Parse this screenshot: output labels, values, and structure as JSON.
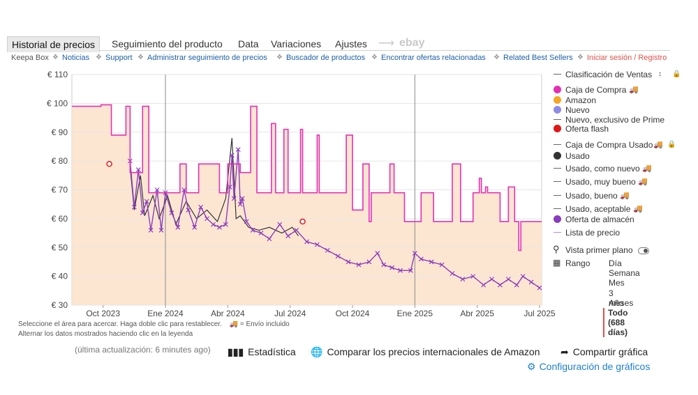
{
  "tabs": [
    "Historial de precios",
    "Seguimiento del producto",
    "Data",
    "Variaciones",
    "Ajustes"
  ],
  "ebay_label": "ebay",
  "links": {
    "keepa_box": "Keepa Box",
    "items": [
      "Noticias",
      "Support",
      "Administrar seguimiento de precios",
      "Buscador de productos",
      "Encontrar ofertas relacionadas",
      "Related Best Sellers"
    ],
    "login": "Iniciar sesión / Registro"
  },
  "chart_data": {
    "type": "line",
    "ylim": [
      30,
      110
    ],
    "yticks": [
      "€ 110",
      "€ 100",
      "€ 90",
      "€ 80",
      "€ 70",
      "€ 60",
      "€ 50",
      "€ 40",
      "€ 30"
    ],
    "ytick_values": [
      110,
      100,
      90,
      80,
      70,
      60,
      50,
      40,
      30
    ],
    "xticks": [
      "Oct 2023",
      "Ene 2024",
      "Abr 2024",
      "Jul 2024",
      "Oct 2024",
      "Ene 2025",
      "Abr 2025",
      "Jul 2025"
    ],
    "x_months": [
      0,
      3,
      6,
      9,
      12,
      15,
      18,
      21
    ],
    "x_range_months": [
      -1.5,
      21.1
    ],
    "series": [
      {
        "name": "Caja de Compra",
        "color": "#e62eb4",
        "points": [
          [
            -1.5,
            99
          ],
          [
            -0.1,
            99
          ],
          [
            -0.1,
            99.5
          ],
          [
            0.4,
            99.5
          ],
          [
            0.4,
            89
          ],
          [
            1.1,
            89
          ],
          [
            1.1,
            99
          ],
          [
            1.3,
            99
          ],
          [
            1.3,
            76
          ],
          [
            1.9,
            76
          ],
          [
            1.9,
            99
          ],
          [
            2.2,
            99
          ],
          [
            2.2,
            69
          ],
          [
            3.7,
            69
          ],
          [
            3.7,
            79
          ],
          [
            4.0,
            79
          ],
          [
            4.0,
            69
          ],
          [
            4.6,
            69
          ],
          [
            4.6,
            79
          ],
          [
            5.6,
            79
          ],
          [
            5.6,
            69
          ],
          [
            6.0,
            69
          ],
          [
            6.0,
            79
          ],
          [
            6.6,
            79
          ],
          [
            6.6,
            76
          ],
          [
            7.1,
            76
          ],
          [
            7.1,
            99
          ],
          [
            7.4,
            99
          ],
          [
            7.4,
            69
          ],
          [
            8.1,
            69
          ],
          [
            8.1,
            93
          ],
          [
            8.3,
            93
          ],
          [
            8.3,
            69
          ],
          [
            8.7,
            69
          ],
          [
            8.7,
            91
          ],
          [
            8.9,
            91
          ],
          [
            8.9,
            69
          ],
          [
            9.5,
            69
          ],
          [
            9.5,
            91
          ],
          [
            9.6,
            91
          ],
          [
            9.6,
            69
          ],
          [
            10.3,
            69
          ],
          [
            10.3,
            89
          ],
          [
            10.4,
            89
          ],
          [
            10.4,
            69
          ],
          [
            11.7,
            69
          ],
          [
            11.7,
            89
          ],
          [
            12.0,
            89
          ],
          [
            12.0,
            63
          ],
          [
            12.5,
            63
          ],
          [
            12.5,
            79
          ],
          [
            12.8,
            79
          ],
          [
            12.8,
            59
          ],
          [
            12.9,
            59
          ],
          [
            12.9,
            69
          ],
          [
            13.8,
            69
          ],
          [
            13.8,
            79
          ],
          [
            14.0,
            79
          ],
          [
            14.0,
            69
          ],
          [
            14.5,
            69
          ],
          [
            14.5,
            59
          ],
          [
            15.3,
            59
          ],
          [
            15.3,
            69
          ],
          [
            15.9,
            69
          ],
          [
            15.9,
            59
          ],
          [
            16.8,
            59
          ],
          [
            16.8,
            79
          ],
          [
            17.2,
            79
          ],
          [
            17.2,
            59
          ],
          [
            17.8,
            59
          ],
          [
            17.8,
            69
          ],
          [
            18.1,
            69
          ],
          [
            18.1,
            74
          ],
          [
            18.2,
            74
          ],
          [
            18.2,
            69
          ],
          [
            18.4,
            69
          ],
          [
            18.4,
            71
          ],
          [
            18.5,
            71
          ],
          [
            18.5,
            69
          ],
          [
            19.1,
            69
          ],
          [
            19.1,
            59
          ],
          [
            19.5,
            59
          ],
          [
            19.5,
            71
          ],
          [
            19.8,
            71
          ],
          [
            19.8,
            59
          ],
          [
            20.0,
            59
          ],
          [
            20.0,
            49
          ],
          [
            20.1,
            49
          ],
          [
            20.1,
            59
          ],
          [
            21.1,
            59
          ]
        ]
      },
      {
        "name": "Oferta de almacén",
        "color": "#8a3cc0",
        "points": [
          [
            1.3,
            80
          ],
          [
            1.5,
            64
          ],
          [
            1.7,
            77
          ],
          [
            1.9,
            62
          ],
          [
            2.1,
            66
          ],
          [
            2.3,
            56
          ],
          [
            2.6,
            70
          ],
          [
            2.8,
            56
          ],
          [
            3.0,
            69
          ],
          [
            3.3,
            62
          ],
          [
            3.6,
            57
          ],
          [
            3.9,
            70
          ],
          [
            4.1,
            63
          ],
          [
            4.4,
            57
          ],
          [
            4.7,
            64
          ],
          [
            5.0,
            60
          ],
          [
            5.3,
            58
          ],
          [
            5.6,
            57
          ],
          [
            5.9,
            58
          ],
          [
            6.1,
            71
          ],
          [
            6.2,
            82
          ],
          [
            6.3,
            67
          ],
          [
            6.5,
            84
          ],
          [
            6.6,
            65
          ],
          [
            6.7,
            67
          ],
          [
            6.9,
            59
          ],
          [
            7.2,
            56
          ],
          [
            7.6,
            55
          ],
          [
            8.0,
            53
          ],
          [
            8.5,
            58
          ],
          [
            8.9,
            54
          ],
          [
            9.3,
            56
          ],
          [
            9.8,
            52
          ],
          [
            10.3,
            51
          ],
          [
            10.8,
            49
          ],
          [
            11.3,
            47
          ],
          [
            11.8,
            45
          ],
          [
            12.3,
            44
          ],
          [
            12.8,
            45
          ],
          [
            13.2,
            48
          ],
          [
            13.5,
            44
          ],
          [
            13.9,
            43
          ],
          [
            14.3,
            42
          ],
          [
            14.8,
            42
          ],
          [
            15.0,
            48
          ],
          [
            15.3,
            46
          ],
          [
            15.8,
            45
          ],
          [
            16.3,
            44
          ],
          [
            16.8,
            41
          ],
          [
            17.3,
            39
          ],
          [
            17.8,
            40
          ],
          [
            18.3,
            37
          ],
          [
            18.7,
            39
          ],
          [
            19.1,
            37
          ],
          [
            19.5,
            39
          ],
          [
            19.9,
            37
          ],
          [
            20.2,
            40
          ],
          [
            20.6,
            38
          ],
          [
            21.0,
            36
          ]
        ]
      },
      {
        "name": "Usado",
        "color": "#333333",
        "points": [
          [
            1.3,
            78
          ],
          [
            1.5,
            63
          ],
          [
            1.8,
            75
          ],
          [
            2.0,
            61
          ],
          [
            2.4,
            68
          ],
          [
            2.7,
            60
          ],
          [
            3.1,
            68
          ],
          [
            3.5,
            58
          ],
          [
            4.0,
            66
          ],
          [
            4.5,
            60
          ],
          [
            5.0,
            63
          ],
          [
            5.5,
            59
          ],
          [
            5.9,
            67
          ],
          [
            6.2,
            88
          ],
          [
            6.4,
            60
          ],
          [
            6.6,
            61
          ],
          [
            7.0,
            57
          ],
          [
            7.5,
            56
          ],
          [
            8.0,
            57
          ],
          [
            8.6,
            55
          ],
          [
            9.1,
            57
          ],
          [
            9.4,
            54
          ]
        ]
      }
    ],
    "markers": [
      [
        0.3,
        79
      ],
      [
        9.6,
        59
      ]
    ],
    "marker_color": "#e01818"
  },
  "legend": {
    "sales_rank": "Clasificación de Ventas",
    "items": [
      {
        "label": "Caja de Compra",
        "color": "#e62eb4",
        "truck": true
      },
      {
        "label": "Amazon",
        "color": "#f5a623"
      },
      {
        "label": "Nuevo",
        "color": "#8c8ce6"
      },
      {
        "label": "Nuevo, exclusivo de Prime",
        "color": "#666666"
      },
      {
        "label": "Oferta flash",
        "color": "#e01818"
      }
    ],
    "used_items": [
      {
        "label": "Caja de Compra Usado",
        "truck": true
      },
      {
        "label": "Usado",
        "color": "#333333"
      },
      {
        "label": "Usado, como nuevo",
        "truck": true
      },
      {
        "label": "Usado, muy bueno",
        "truck": true
      },
      {
        "label": "Usado, bueno",
        "truck": true
      },
      {
        "label": "Usado, aceptable",
        "truck": true
      },
      {
        "label": "Oferta de almacén",
        "color": "#8a3cc0"
      },
      {
        "label": "Lista de precio"
      }
    ],
    "vista": "Vista primer plano",
    "rango": "Rango",
    "ranges": [
      "Día",
      "Semana",
      "Mes",
      "3 meses",
      "Año",
      "Todo (688 días)"
    ]
  },
  "hints": {
    "line1": "Seleccione el área para acercar. Haga doble clic para restablecer.",
    "shipping": "= Envío incluido",
    "line2": "Alternar los datos mostrados haciendo clic en la leyenda"
  },
  "footer": {
    "updated": "(última actualización: 6 minutes ago)",
    "stats": "Estadística",
    "compare": "Comparar los precios internacionales de Amazon",
    "share": "Compartir gráfica",
    "config": "Configuración de gráficos"
  }
}
